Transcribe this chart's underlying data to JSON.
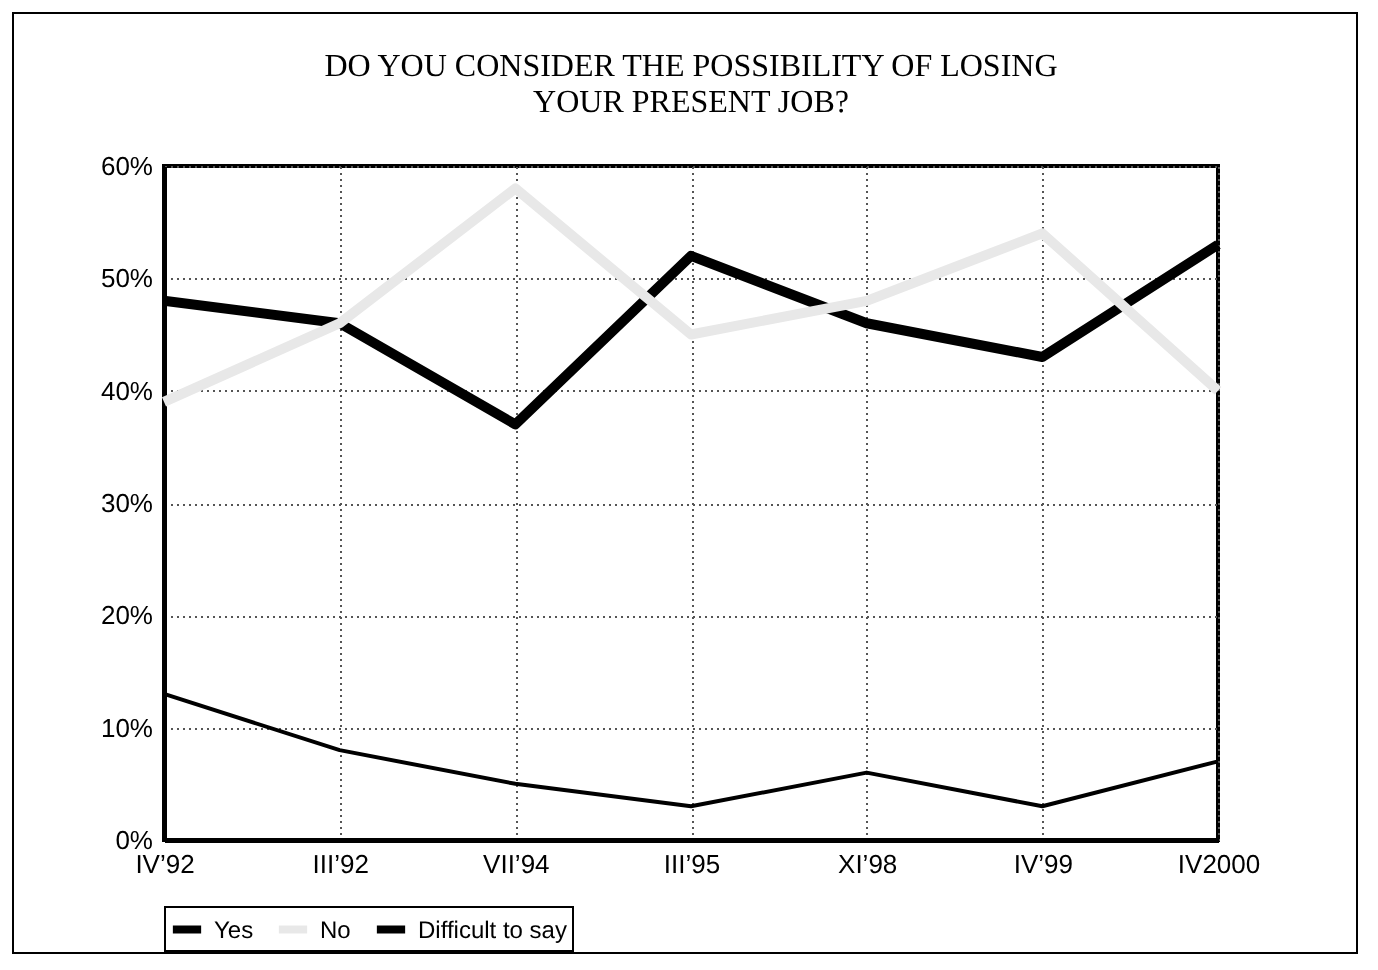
{
  "chart_data": {
    "type": "line",
    "title": "DO YOU CONSIDER THE POSSIBILITY OF LOSING YOUR PRESENT JOB?",
    "categories": [
      "IV’92",
      "III’92",
      "VII’94",
      "III’95",
      "XI’98",
      "IV’99",
      "IV2000"
    ],
    "series": [
      {
        "name": "Yes",
        "color": "#000000",
        "values": [
          48,
          46,
          37,
          52,
          46,
          43,
          53
        ]
      },
      {
        "name": "No",
        "color": "#e8e8e8",
        "values": [
          39,
          46,
          58,
          45,
          48,
          54,
          40
        ]
      },
      {
        "name": "Difficult to say",
        "color": "#000000",
        "values": [
          13,
          8,
          5,
          3,
          6,
          3,
          7
        ]
      }
    ],
    "ylim": [
      0,
      60
    ],
    "yticks": [
      {
        "value": 0,
        "label": "0%"
      },
      {
        "value": 10,
        "label": "10%"
      },
      {
        "value": 20,
        "label": "20%"
      },
      {
        "value": 30,
        "label": "30%"
      },
      {
        "value": 40,
        "label": "40%"
      },
      {
        "value": 50,
        "label": "50%"
      },
      {
        "value": 60,
        "label": "60%"
      }
    ],
    "grid": true,
    "legend": "bottom",
    "marker": "none",
    "line_style": "solid"
  }
}
